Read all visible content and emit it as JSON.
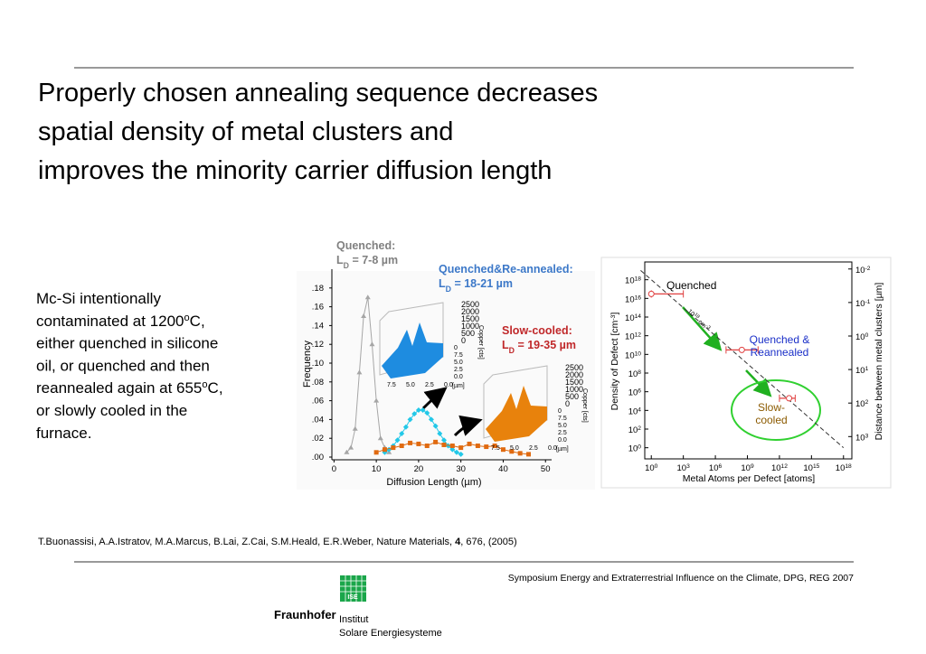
{
  "header": {
    "title_lines": [
      "Properly chosen annealing sequence decreases",
      "spatial density of metal clusters and",
      "improves the minority carrier diffusion length"
    ]
  },
  "body": {
    "lines": [
      [
        {
          "text": "Mc-Si intentionally"
        }
      ],
      [
        {
          "text": "contaminated at 1200"
        },
        {
          "text": "o",
          "sup": true
        },
        {
          "text": "C,"
        }
      ],
      [
        {
          "text": "either quenched in silicone"
        }
      ],
      [
        {
          "text": "oil, or quenched and then"
        }
      ],
      [
        {
          "text": "reannealed again at 655"
        },
        {
          "text": "o",
          "sup": true
        },
        {
          "text": "C,"
        }
      ],
      [
        {
          "text": "or slowly cooled in the"
        }
      ],
      [
        {
          "text": "furnace."
        }
      ]
    ]
  },
  "figures": {
    "histogram": {
      "type": "line",
      "x_label": "Diffusion Length (µm)",
      "y_label": "Frequency",
      "xlim": [
        -2,
        60
      ],
      "ylim": [
        0,
        0.2
      ],
      "xticks": [
        0,
        10,
        20,
        30,
        40,
        50
      ],
      "yticks": [
        {
          "value": 0,
          "label": ".00"
        },
        {
          "value": 0.02,
          "label": ".02"
        },
        {
          "value": 0.04,
          "label": ".04"
        },
        {
          "value": 0.06,
          "label": ".06"
        },
        {
          "value": 0.08,
          "label": ".08"
        },
        {
          "value": 0.1,
          "label": ".10"
        },
        {
          "value": 0.12,
          "label": ".12"
        },
        {
          "value": 0.14,
          "label": ".14"
        },
        {
          "value": 0.16,
          "label": ".16"
        },
        {
          "value": 0.18,
          "label": ".18"
        }
      ],
      "series": [
        {
          "color": "#a6a6a6",
          "marker": "triangle",
          "x": [
            3,
            4,
            5,
            6,
            7,
            8,
            9,
            10,
            11,
            12,
            13
          ],
          "values": [
            0.005,
            0.01,
            0.03,
            0.09,
            0.15,
            0.17,
            0.12,
            0.06,
            0.02,
            0.01,
            0.005
          ]
        },
        {
          "color": "#22c8e8",
          "marker": "diamond",
          "x": [
            12,
            13,
            14,
            15,
            16,
            17,
            18,
            19,
            20,
            21,
            22,
            23,
            24,
            25,
            26,
            27,
            28,
            29,
            30
          ],
          "values": [
            0.005,
            0.008,
            0.012,
            0.018,
            0.025,
            0.032,
            0.04,
            0.046,
            0.05,
            0.05,
            0.047,
            0.04,
            0.033,
            0.025,
            0.018,
            0.012,
            0.008,
            0.005,
            0.003
          ]
        },
        {
          "color": "#e06a10",
          "marker": "square",
          "x": [
            10,
            12,
            14,
            16,
            18,
            20,
            22,
            24,
            26,
            28,
            30,
            32,
            34,
            36,
            38,
            40,
            42,
            44,
            46
          ],
          "values": [
            0.005,
            0.008,
            0.01,
            0.012,
            0.015,
            0.014,
            0.012,
            0.016,
            0.013,
            0.012,
            0.01,
            0.014,
            0.012,
            0.011,
            0.012,
            0.008,
            0.006,
            0.004,
            0.003
          ]
        }
      ],
      "annotations": [
        {
          "title": "Quenched:",
          "main": "L",
          "sub": "D",
          "rest": " = 7-8 µm",
          "color": "#808080"
        },
        {
          "title": "Quenched&Re-annealed:",
          "main": "L",
          "sub": "D",
          "rest": " = 18-21 µm",
          "color": "#3c78c8"
        },
        {
          "title": "Slow-cooled:",
          "main": "L",
          "sub": "D",
          "rest": " = 19-35 µm",
          "color": "#c0282a"
        }
      ],
      "insets": [
        {
          "color": "#1e8ce0",
          "zticks": [
            "2500",
            "2000",
            "1500",
            "1000",
            "500",
            "0"
          ],
          "z_label": "Copper [cts]",
          "xticks": [
            "7.5",
            "5.0",
            "2.5",
            "0.0"
          ],
          "x_unit": "[µm]",
          "side_ticks": [
            "0",
            "7.5",
            "5.0",
            "2.5",
            "0.0"
          ]
        },
        {
          "color": "#e8820c",
          "zticks": [
            "2500",
            "2000",
            "1500",
            "1000",
            "500",
            "0"
          ],
          "z_label": "Copper [cts]",
          "xticks": [
            "7.5",
            "5.0",
            "2.5",
            "0.0"
          ],
          "x_unit": "[µm]",
          "side_ticks": [
            "0",
            "7.5",
            "5.0",
            "2.5",
            "0.0"
          ]
        }
      ]
    },
    "defect_plot": {
      "type": "scatter",
      "log": true,
      "x_label": "Metal Atoms per Defect [atoms]",
      "y_label": [
        {
          "text": "Density of Defect [cm"
        },
        {
          "text": "-3",
          "sup": true
        },
        {
          "text": "]"
        }
      ],
      "y2_label": "Distance between metal clusters [µm]",
      "xlim": [
        0.0001,
        1e+22
      ],
      "ylim": [
        0.0001,
        1e+20
      ],
      "y2lim": [
        0.0058,
        28000
      ],
      "xticks": [
        {
          "value": 1,
          "label": {
            "base": "10",
            "exp": "0"
          }
        },
        {
          "value": 1000,
          "label": {
            "base": "10",
            "exp": "3"
          }
        },
        {
          "value": 1000000,
          "label": {
            "base": "10",
            "exp": "6"
          }
        },
        {
          "value": 1000000000.0,
          "label": {
            "base": "10",
            "exp": "9"
          }
        },
        {
          "value": 1000000000000.0,
          "label": {
            "base": "10",
            "exp": "12"
          }
        },
        {
          "value": 1000000000000000.0,
          "label": {
            "base": "10",
            "exp": "15"
          }
        },
        {
          "value": 1e+18,
          "label": {
            "base": "10",
            "exp": "18"
          }
        }
      ],
      "yticks": [
        {
          "value": 1,
          "label": {
            "base": "10",
            "exp": "0"
          }
        },
        {
          "value": 100,
          "label": {
            "base": "10",
            "exp": "2"
          }
        },
        {
          "value": 10000,
          "label": {
            "base": "10",
            "exp": "4"
          }
        },
        {
          "value": 1000000,
          "label": {
            "base": "10",
            "exp": "6"
          }
        },
        {
          "value": 100000000.0,
          "label": {
            "base": "10",
            "exp": "8"
          }
        },
        {
          "value": 10000000000.0,
          "label": {
            "base": "10",
            "exp": "10"
          }
        },
        {
          "value": 1000000000000.0,
          "label": {
            "base": "10",
            "exp": "12"
          }
        },
        {
          "value": 100000000000000.0,
          "label": {
            "base": "10",
            "exp": "14"
          }
        },
        {
          "value": 1e+16,
          "label": {
            "base": "10",
            "exp": "16"
          }
        },
        {
          "value": 1e+18,
          "label": {
            "base": "10",
            "exp": "18"
          }
        }
      ],
      "y2ticks": [
        {
          "value": 0.01,
          "label": {
            "base": "10",
            "exp": "-2"
          }
        },
        {
          "value": 0.1,
          "label": {
            "base": "10",
            "exp": "-1"
          }
        },
        {
          "value": 1,
          "label": {
            "base": "10",
            "exp": "0"
          }
        },
        {
          "value": 10,
          "label": {
            "base": "10",
            "exp": "1"
          }
        },
        {
          "value": 100,
          "label": {
            "base": "10",
            "exp": "2"
          }
        },
        {
          "value": 1000,
          "label": {
            "base": "10",
            "exp": "3"
          }
        }
      ],
      "reference": {
        "value": 1e+18,
        "label": {
          "base": "10",
          "exp": "18",
          "unit": "cm",
          "unit_exp": "-3"
        }
      },
      "series": [
        {
          "label_lines": [
            "Quenched"
          ],
          "label_color": "#000000",
          "color": "#e04040",
          "x": 1,
          "y": 3e+16,
          "x_err": [
            1,
            1000
          ]
        },
        {
          "label_lines": [
            "Quenched &",
            "Reannealed"
          ],
          "label_color": "#1a2fc8",
          "color": "#e04040",
          "x": 300000000,
          "y": 30000000000,
          "x_err": [
            10000000,
            10000000000
          ]
        },
        {
          "label_lines": [
            "Slow-",
            "cooled"
          ],
          "label_color": "#8b5a00",
          "color": "#e04040",
          "x": 8000000000000,
          "y": 200000,
          "x_err": [
            1000000000000,
            30000000000000
          ]
        }
      ]
    }
  },
  "citation": [
    {
      "text": "T.Buonassisi, A.A.Istratov, M.A.Marcus, B.Lai, Z.Cai, S.M.Heald, E.R.Weber, Nature Materials, "
    },
    {
      "text": "4",
      "bold": true
    },
    {
      "text": ", 676,  (2005)"
    }
  ],
  "footer": {
    "event": "Symposium Energy and Extraterrestrial Influence on the Climate, DPG, REG 2007",
    "logo": {
      "brand": "Fraunhofer",
      "badge": "ISE",
      "line1": "Institut",
      "line2": "Solare Energiesysteme"
    }
  }
}
